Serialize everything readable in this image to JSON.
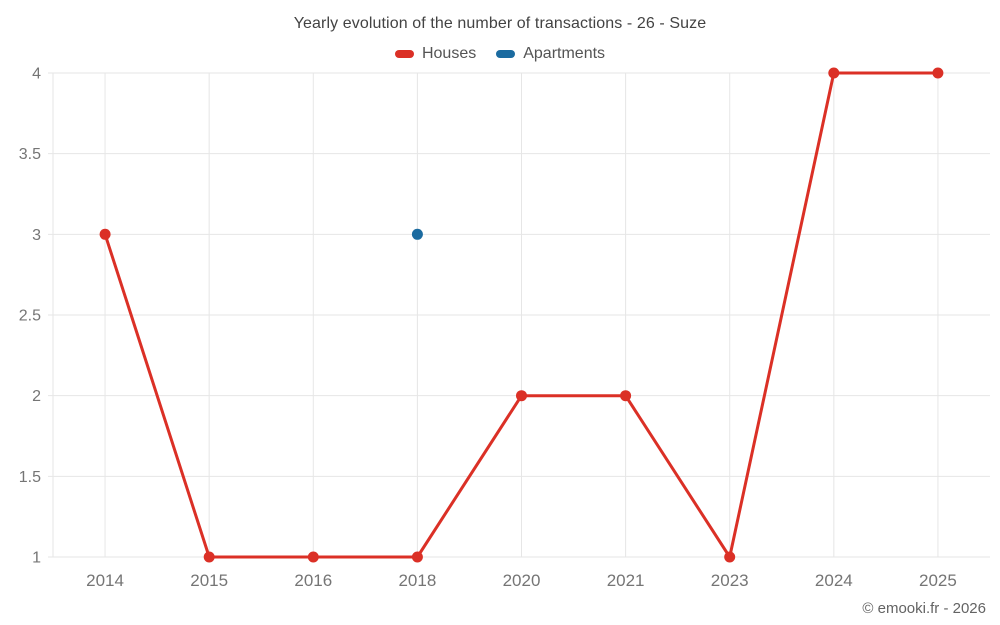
{
  "header": {
    "title": "Yearly evolution of the number of transactions - 26 - Suze"
  },
  "chart_data": {
    "type": "line",
    "title": "Yearly evolution of the number of transactions - 26 - Suze",
    "categories": [
      "2014",
      "2015",
      "2016",
      "2018",
      "2020",
      "2021",
      "2023",
      "2024",
      "2025"
    ],
    "series": [
      {
        "name": "Houses",
        "color": "#db3026",
        "values": [
          3,
          1,
          1,
          1,
          2,
          2,
          1,
          4,
          4
        ]
      },
      {
        "name": "Apartments",
        "color": "#1b6ba0",
        "values": [
          null,
          null,
          null,
          3,
          null,
          null,
          null,
          null,
          null
        ]
      }
    ],
    "xlabel": "",
    "ylabel": "",
    "ylim": [
      1,
      4
    ],
    "y_ticks": [
      "1",
      "1.5",
      "2",
      "2.5",
      "3",
      "3.5",
      "4"
    ],
    "grid": true,
    "legend_position": "top",
    "style": {
      "grid_color": "#e6e6e6",
      "tick_label_color": "#757575",
      "title_color": "#434343",
      "legend_text_color": "#545454",
      "point_radius": 5.5,
      "line_width": 3
    }
  },
  "watermark": "© emooki.fr - 2026"
}
